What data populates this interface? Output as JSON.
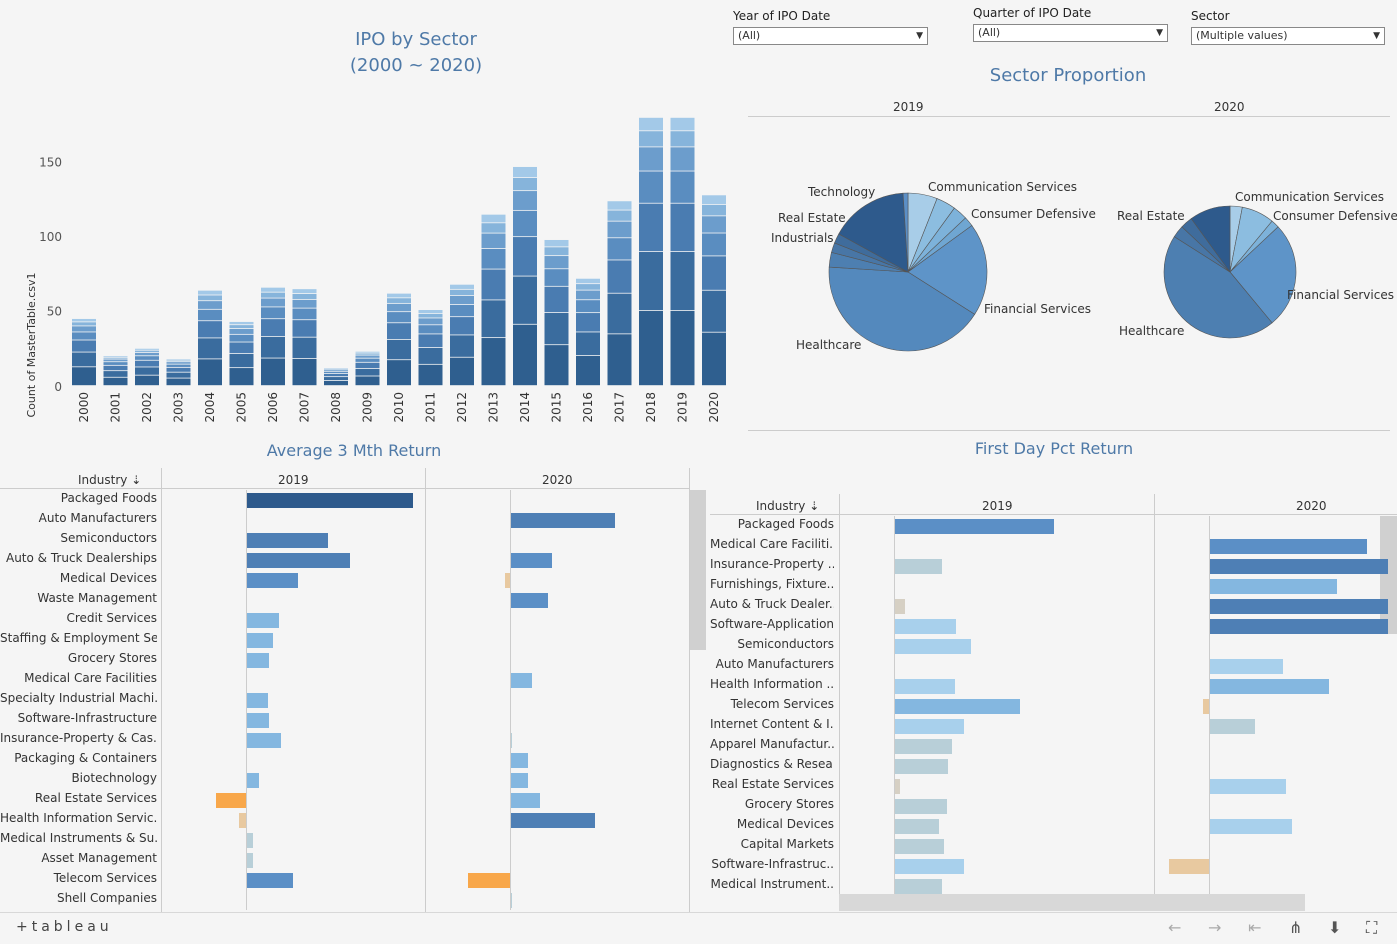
{
  "filters": [
    {
      "label": "Year of IPO Date",
      "value": "(All)"
    },
    {
      "label": "Quarter of IPO Date",
      "value": "(All)"
    },
    {
      "label": "Sector",
      "value": "(Multiple values)"
    }
  ],
  "ipo_chart": {
    "title_line1": "IPO by Sector",
    "title_line2": "(2000 ~ 2020)"
  },
  "sector_chart": {
    "title": "Sector Proportion"
  },
  "avg_chart": {
    "title": "Average 3 Mth Return",
    "row_header": "Industry"
  },
  "first_chart": {
    "title": "First Day Pct Return",
    "row_header": "Industry"
  },
  "colors": {
    "dark": "#2e5a8c",
    "mid": "#4e7fb5",
    "blue": "#5b8fc6",
    "light": "#84b7e0",
    "pale": "#a8d0ec",
    "grey": "#b8cfd8",
    "orange": "#f8a74a",
    "tan": "#e8c9a0",
    "title": "#4e79a7"
  },
  "footer": {
    "brand": "+tableau"
  },
  "icons": [
    "undo-icon",
    "redo-icon",
    "revert-icon",
    "share-icon",
    "download-icon",
    "fullscreen-icon"
  ],
  "chart_data": [
    {
      "type": "bar",
      "title": "IPO by Sector (2000 ~ 2020)",
      "xlabel": "",
      "ylabel": "Count of MasterTable.csv1",
      "ylim": [
        0,
        180
      ],
      "yticks": [
        0,
        50,
        100,
        150
      ],
      "categories": [
        "2000",
        "2001",
        "2002",
        "2003",
        "2004",
        "2005",
        "2006",
        "2007",
        "2008",
        "2009",
        "2010",
        "2011",
        "2012",
        "2013",
        "2014",
        "2015",
        "2016",
        "2017",
        "2018",
        "2019",
        "2020"
      ],
      "values": [
        45,
        20,
        25,
        18,
        64,
        43,
        66,
        65,
        12,
        23,
        62,
        51,
        68,
        115,
        147,
        98,
        72,
        124,
        180,
        180,
        128
      ],
      "stacked": true
    },
    {
      "type": "pie",
      "title": "Sector Proportion",
      "facets": [
        {
          "name": "2019",
          "slices": [
            {
              "label": "Communication Services",
              "value": 6
            },
            {
              "label": "Consumer Defensive",
              "value": 4
            },
            {
              "label": "",
              "value": 3
            },
            {
              "label": "",
              "value": 2
            },
            {
              "label": "Financial Services",
              "value": 19
            },
            {
              "label": "Healthcare",
              "value": 42
            },
            {
              "label": "Industrials",
              "value": 3
            },
            {
              "label": "Real Estate",
              "value": 2
            },
            {
              "label": "",
              "value": 2
            },
            {
              "label": "Technology",
              "value": 16
            },
            {
              "label": "",
              "value": 1
            }
          ]
        },
        {
          "name": "2020",
          "slices": [
            {
              "label": "Communication Services",
              "value": 3
            },
            {
              "label": "Consumer Defensive",
              "value": 8
            },
            {
              "label": "",
              "value": 2
            },
            {
              "label": "Financial Services",
              "value": 26
            },
            {
              "label": "Healthcare",
              "value": 45
            },
            {
              "label": "Real Estate",
              "value": 3
            },
            {
              "label": "",
              "value": 3
            },
            {
              "label": "",
              "value": 10
            }
          ]
        }
      ]
    },
    {
      "type": "bar",
      "title": "Average 3 Mth Return",
      "columns": [
        "2019",
        "2020"
      ],
      "rows": [
        {
          "industry": "Packaged Foods",
          "v2019": 1.0,
          "v2020": null
        },
        {
          "industry": "Auto Manufacturers",
          "v2019": null,
          "v2020": 0.63
        },
        {
          "industry": "Semiconductors",
          "v2019": 0.49,
          "v2020": null
        },
        {
          "industry": "Auto & Truck Dealerships",
          "v2019": 0.62,
          "v2020": 0.25
        },
        {
          "industry": "Medical Devices",
          "v2019": 0.31,
          "v2020": -0.03
        },
        {
          "industry": "Waste Management",
          "v2019": null,
          "v2020": 0.23
        },
        {
          "industry": "Credit Services",
          "v2019": 0.2,
          "v2020": null
        },
        {
          "industry": "Staffing & Employment Se..",
          "v2019": 0.16,
          "v2020": null
        },
        {
          "industry": "Grocery Stores",
          "v2019": 0.14,
          "v2020": null
        },
        {
          "industry": "Medical Care Facilities",
          "v2019": null,
          "v2020": 0.13
        },
        {
          "industry": "Specialty Industrial Machi..",
          "v2019": 0.13,
          "v2020": null
        },
        {
          "industry": "Software-Infrastructure",
          "v2019": 0.14,
          "v2020": null
        },
        {
          "industry": "Insurance-Property & Cas..",
          "v2019": 0.21,
          "v2020": 0.01
        },
        {
          "industry": "Packaging & Containers",
          "v2019": null,
          "v2020": 0.11
        },
        {
          "industry": "Biotechnology",
          "v2019": 0.08,
          "v2020": 0.11
        },
        {
          "industry": "Real Estate Services",
          "v2019": -0.18,
          "v2020": 0.18
        },
        {
          "industry": "Health Information Servic..",
          "v2019": -0.04,
          "v2020": 0.51
        },
        {
          "industry": "Medical Instruments & Su..",
          "v2019": 0.04,
          "v2020": null
        },
        {
          "industry": "Asset Management",
          "v2019": 0.04,
          "v2020": null
        },
        {
          "industry": "Telecom Services",
          "v2019": 0.28,
          "v2020": -0.25
        },
        {
          "industry": "Shell Companies",
          "v2019": null,
          "v2020": 0.01
        }
      ]
    },
    {
      "type": "bar",
      "title": "First Day Pct Return",
      "columns": [
        "2019",
        "2020"
      ],
      "rows": [
        {
          "industry": "Packaged Foods",
          "v2019": 1.0,
          "v2020": null
        },
        {
          "industry": "Medical Care Faciliti..",
          "v2019": null,
          "v2020": 0.99
        },
        {
          "industry": "Insurance-Property ..",
          "v2019": 0.3,
          "v2020": 1.12
        },
        {
          "industry": "Furnishings, Fixture..",
          "v2019": null,
          "v2020": 0.8
        },
        {
          "industry": "Auto & Truck Dealer..",
          "v2019": 0.07,
          "v2020": 1.12
        },
        {
          "industry": "Software-Application",
          "v2019": 0.39,
          "v2020": 1.12
        },
        {
          "industry": "Semiconductors",
          "v2019": 0.48,
          "v2020": null
        },
        {
          "industry": "Auto Manufacturers",
          "v2019": null,
          "v2020": 0.46
        },
        {
          "industry": "Health Information ..",
          "v2019": 0.38,
          "v2020": 0.75
        },
        {
          "industry": "Telecom Services",
          "v2019": 0.79,
          "v2020": -0.04
        },
        {
          "industry": "Internet Content & I..",
          "v2019": 0.44,
          "v2020": 0.29
        },
        {
          "industry": "Apparel Manufactur..",
          "v2019": 0.36,
          "v2020": null
        },
        {
          "industry": "Diagnostics & Resea..",
          "v2019": 0.34,
          "v2020": null
        },
        {
          "industry": "Real Estate Services",
          "v2019": 0.04,
          "v2020": 0.48
        },
        {
          "industry": "Grocery Stores",
          "v2019": 0.33,
          "v2020": null
        },
        {
          "industry": "Medical Devices",
          "v2019": 0.28,
          "v2020": 0.52
        },
        {
          "industry": "Capital Markets",
          "v2019": 0.31,
          "v2020": null
        },
        {
          "industry": "Software-Infrastruc..",
          "v2019": 0.44,
          "v2020": -0.25
        },
        {
          "industry": "Medical Instrument..",
          "v2019": 0.3,
          "v2020": null
        }
      ]
    }
  ]
}
